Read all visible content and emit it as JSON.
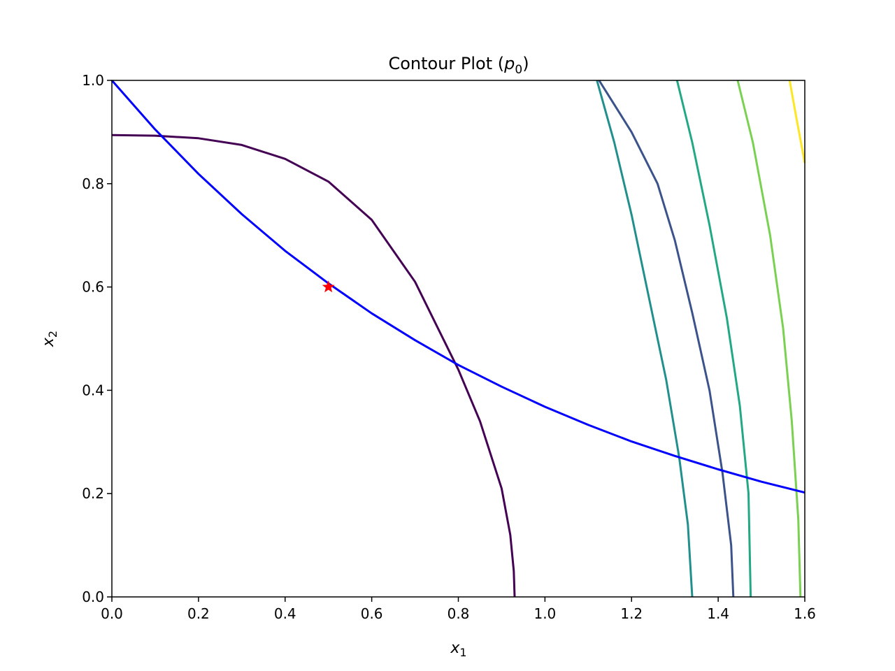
{
  "chart_data": {
    "type": "line",
    "title": {
      "prefix": "Contour Plot (",
      "symbol": "p",
      "subscript": "0",
      "suffix": ")"
    },
    "xlabel": {
      "symbol": "x",
      "subscript": "1"
    },
    "ylabel": {
      "symbol": "x",
      "subscript": "2"
    },
    "xlim": [
      0,
      1.6
    ],
    "ylim": [
      0,
      1.0
    ],
    "xticks": [
      0.0,
      0.2,
      0.4,
      0.6,
      0.8,
      1.0,
      1.2,
      1.4,
      1.6
    ],
    "xtick_labels": [
      "0.0",
      "0.2",
      "0.4",
      "0.6",
      "0.8",
      "1.0",
      "1.2",
      "1.4",
      "1.6"
    ],
    "yticks": [
      0.0,
      0.2,
      0.4,
      0.6,
      0.8,
      1.0
    ],
    "ytick_labels": [
      "0.0",
      "0.2",
      "0.4",
      "0.6",
      "0.8",
      "1.0"
    ],
    "grid": false,
    "legend": "none",
    "contours": [
      {
        "color": "#440154",
        "points": [
          [
            0.0,
            0.894
          ],
          [
            0.1,
            0.893
          ],
          [
            0.2,
            0.888
          ],
          [
            0.3,
            0.875
          ],
          [
            0.4,
            0.848
          ],
          [
            0.5,
            0.804
          ],
          [
            0.6,
            0.73
          ],
          [
            0.7,
            0.61
          ],
          [
            0.8,
            0.44
          ],
          [
            0.85,
            0.34
          ],
          [
            0.9,
            0.21
          ],
          [
            0.92,
            0.12
          ],
          [
            0.928,
            0.05
          ],
          [
            0.93,
            0.0
          ]
        ]
      },
      {
        "color": "#3b528b",
        "points": [
          [
            1.125,
            1.0
          ],
          [
            1.2,
            0.9
          ],
          [
            1.26,
            0.8
          ],
          [
            1.3,
            0.69
          ],
          [
            1.34,
            0.55
          ],
          [
            1.38,
            0.4
          ],
          [
            1.41,
            0.24
          ],
          [
            1.43,
            0.1
          ],
          [
            1.435,
            0.0
          ]
        ]
      },
      {
        "color": "#21908d",
        "points": [
          [
            1.12,
            1.0
          ],
          [
            1.16,
            0.88
          ],
          [
            1.2,
            0.74
          ],
          [
            1.24,
            0.58
          ],
          [
            1.28,
            0.42
          ],
          [
            1.31,
            0.27
          ],
          [
            1.33,
            0.14
          ],
          [
            1.34,
            0.0
          ]
        ]
      },
      {
        "color": "#22a884",
        "points": [
          [
            1.305,
            1.0
          ],
          [
            1.34,
            0.88
          ],
          [
            1.38,
            0.72
          ],
          [
            1.42,
            0.54
          ],
          [
            1.45,
            0.37
          ],
          [
            1.47,
            0.2
          ],
          [
            1.475,
            0.0
          ]
        ]
      },
      {
        "color": "#7ad151",
        "points": [
          [
            1.445,
            1.0
          ],
          [
            1.48,
            0.88
          ],
          [
            1.52,
            0.7
          ],
          [
            1.55,
            0.52
          ],
          [
            1.57,
            0.34
          ],
          [
            1.585,
            0.15
          ],
          [
            1.59,
            0.0
          ]
        ]
      },
      {
        "color": "#fde725",
        "points": [
          [
            1.565,
            1.0
          ],
          [
            1.58,
            0.93
          ],
          [
            1.6,
            0.84
          ]
        ]
      }
    ],
    "series": [
      {
        "color": "#0000ff",
        "points": [
          [
            0.0,
            1.0
          ],
          [
            0.1,
            0.905
          ],
          [
            0.2,
            0.819
          ],
          [
            0.3,
            0.741
          ],
          [
            0.4,
            0.67
          ],
          [
            0.5,
            0.607
          ],
          [
            0.6,
            0.549
          ],
          [
            0.7,
            0.497
          ],
          [
            0.8,
            0.449
          ],
          [
            0.9,
            0.407
          ],
          [
            1.0,
            0.368
          ],
          [
            1.1,
            0.333
          ],
          [
            1.2,
            0.301
          ],
          [
            1.3,
            0.273
          ],
          [
            1.4,
            0.247
          ],
          [
            1.5,
            0.223
          ],
          [
            1.6,
            0.202
          ]
        ]
      }
    ],
    "marker": {
      "x": 0.5,
      "y": 0.6,
      "color": "#ff0000",
      "shape": "star"
    }
  }
}
